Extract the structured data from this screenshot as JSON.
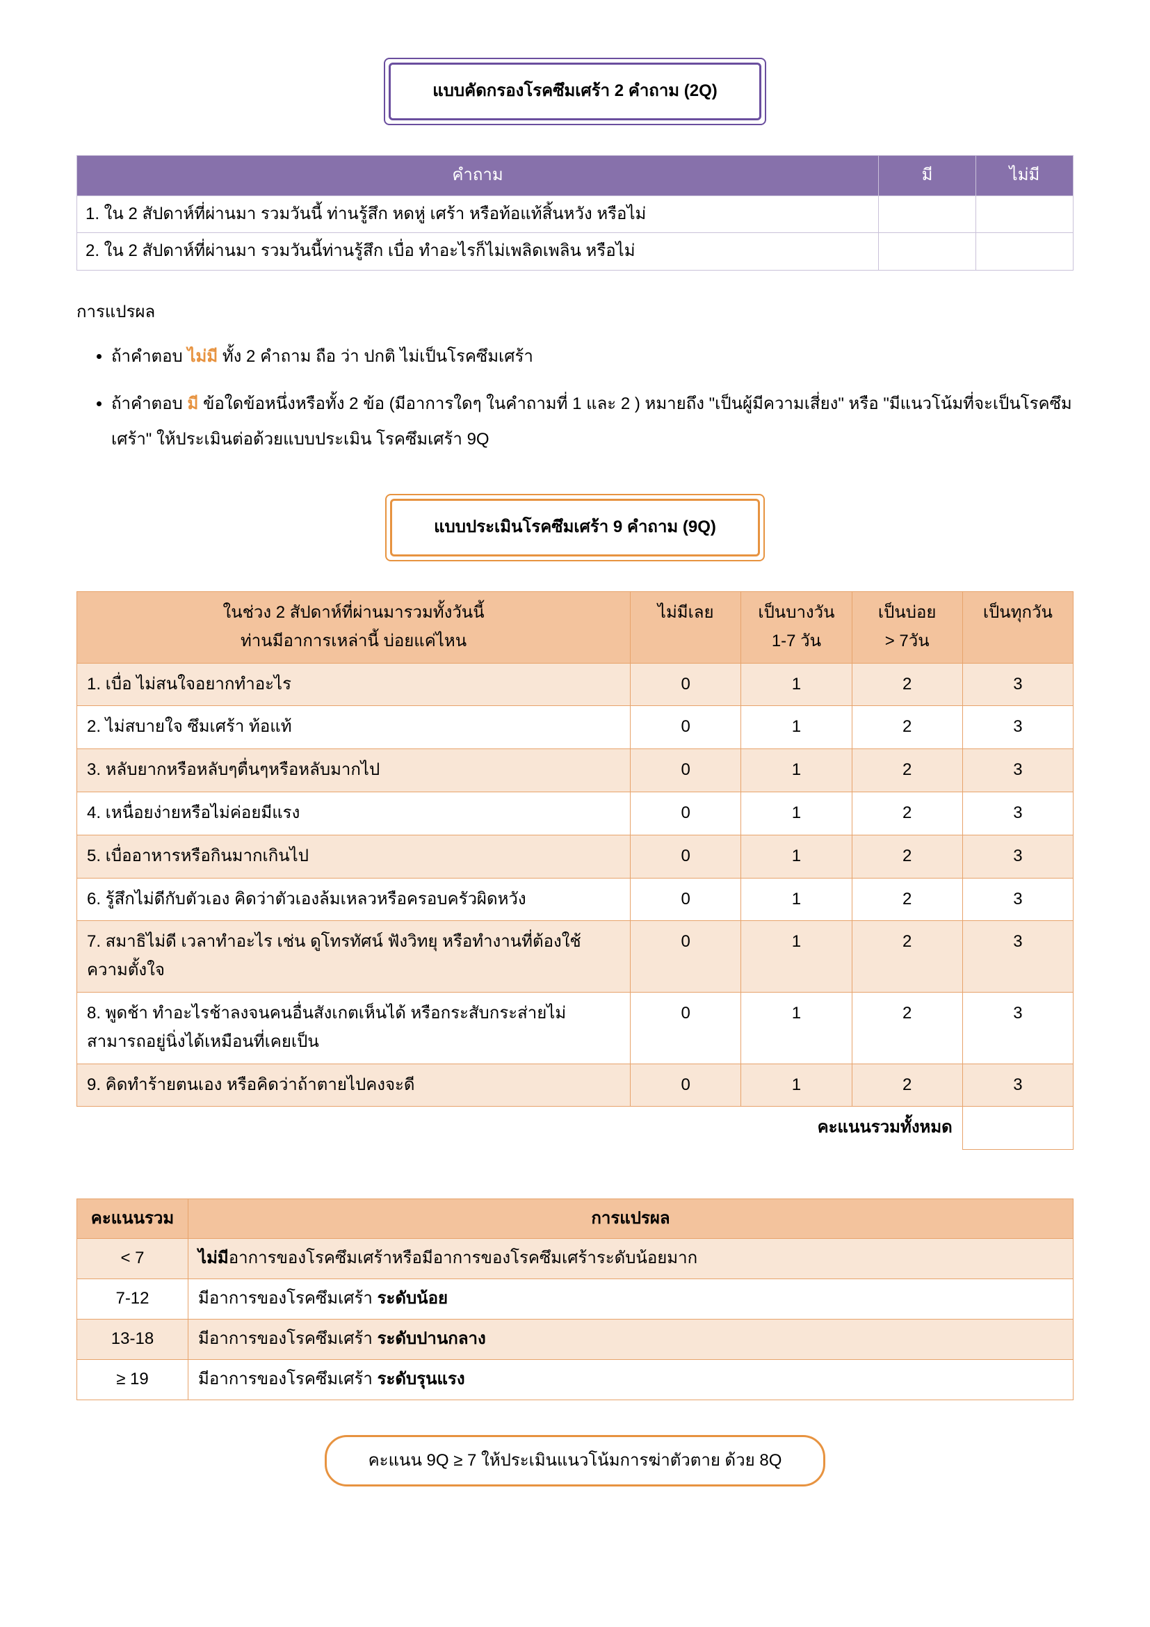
{
  "heading2q": "แบบคัดกรองโรคซึมเศร้า 2 คำถาม (2Q)",
  "table2q": {
    "headers": [
      "คำถาม",
      "มี",
      "ไม่มี"
    ],
    "rows": [
      "1. ใน 2 สัปดาห์ที่ผ่านมา รวมวันนี้ ท่านรู้สึก หดหู่ เศร้า หรือท้อแท้สิ้นหวัง หรือไม่",
      "2. ใน 2 สัปดาห์ที่ผ่านมา รวมวันนี้ท่านรู้สึก  เบื่อ ทำอะไรก็ไม่เพลิดเพลิน หรือไม่"
    ]
  },
  "interpTitle": "การแปรผล",
  "interpNo": {
    "kw": "ไม่มี",
    "rest": " ทั้ง 2 คำถาม ถือ ว่า ปกติ ไม่เป็นโรคซึมเศร้า"
  },
  "interpYes": {
    "kw": "มี",
    "rest": " ข้อใดข้อหนึ่งหรือทั้ง 2 ข้อ (มีอาการใดๆ ในคำถามที่ 1 และ 2 ) หมายถึง \"เป็นผู้มีความเสี่ยง\" หรือ \"มีแนวโน้มที่จะเป็นโรคซึมเศร้า\" ให้ประเมินต่อด้วยแบบประเมิน โรคซึมเศร้า  9Q"
  },
  "heading9q": "แบบประเมินโรคซึมเศร้า 9 คำถาม (9Q)",
  "table9q": {
    "head1": "ในช่วง 2 สัปดาห์ที่ผ่านมารวมทั้งวันนี้",
    "head2": "ท่านมีอาการเหล่านี้ บ่อยแค่ไหน",
    "cols": [
      "ไม่มีเลย",
      "เป็นบางวัน\n1-7 วัน",
      "เป็นบ่อย\n> 7วัน",
      "เป็นทุกวัน"
    ],
    "questions": [
      "1. เบื่อ ไม่สนใจอยากทำอะไร",
      "2. ไม่สบายใจ ซึมเศร้า ท้อแท้",
      "3. หลับยากหรือหลับๆตื่นๆหรือหลับมากไป",
      "4. เหนื่อยง่ายหรือไม่ค่อยมีแรง",
      "5. เบื่ออาหารหรือกินมากเกินไป",
      "6. รู้สึกไม่ดีกับตัวเอง คิดว่าตัวเองล้มเหลวหรือครอบครัวผิดหวัง",
      "7. สมาธิไม่ดี เวลาทำอะไร เช่น ดูโทรทัศน์ ฟังวิทยุ หรือทำงานที่ต้องใช้ความตั้งใจ",
      "8. พูดช้า ทำอะไรช้าลงจนคนอื่นสังเกตเห็นได้ หรือกระสับกระส่ายไม่สามารถอยู่นิ่งได้เหมือนที่เคยเป็น",
      "9. คิดทำร้ายตนเอง หรือคิดว่าถ้าตายไปคงจะดี"
    ],
    "scores": [
      "0",
      "1",
      "2",
      "3"
    ],
    "totalLabel": "คะแนนรวมทั้งหมด"
  },
  "scoreTable": {
    "headers": [
      "คะแนนรวม",
      "การแปรผล"
    ],
    "rows": [
      {
        "range": "< 7",
        "prefix": "ไม่มี",
        "text": "อาการของโรคซึมเศร้าหรือมีอาการของโรคซึมเศร้าระดับน้อยมาก"
      },
      {
        "range": "7-12",
        "prefix": "",
        "text": "มีอาการของโรคซึมเศร้า ",
        "bold": "ระดับน้อย"
      },
      {
        "range": "13-18",
        "prefix": "",
        "text": "มีอาการของโรคซึมเศร้า ",
        "bold": "ระดับปานกลาง"
      },
      {
        "range": "≥ 19",
        "prefix": "",
        "text": "มีอาการของโรคซึมเศร้า ",
        "bold": "ระดับรุนแรง"
      }
    ]
  },
  "footer": "คะแนน 9Q ≥ 7 ให้ประเมินแนวโน้มการฆ่าตัวตาย ด้วย 8Q"
}
